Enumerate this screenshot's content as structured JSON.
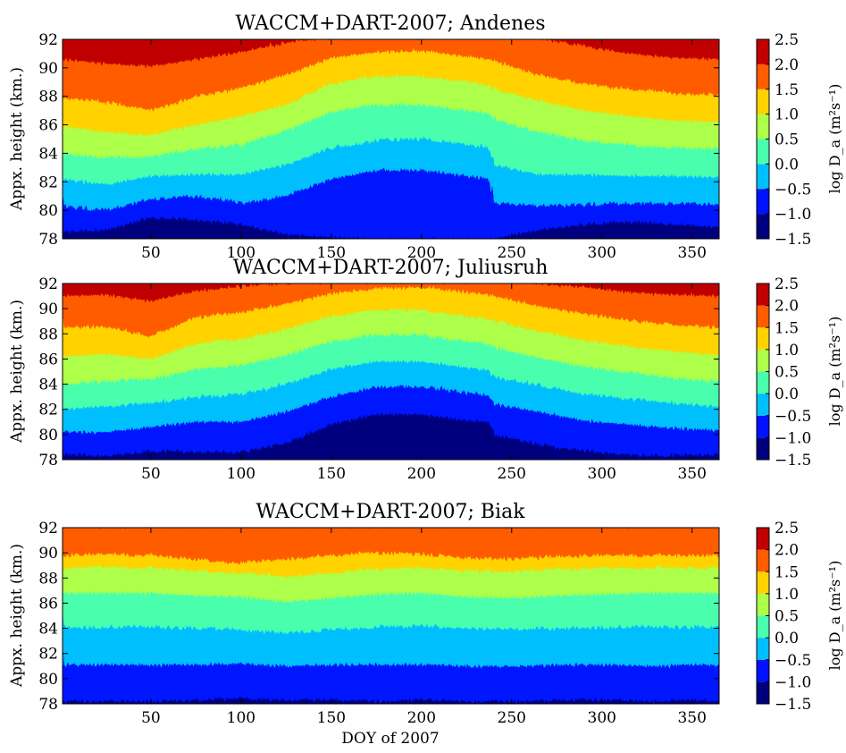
{
  "chart_data": [
    {
      "type": "area",
      "title": "WACCM+DART-2007; Andenes",
      "ylabel": "Appx. height (km.)",
      "xlabel": "",
      "xlim": [
        1,
        365
      ],
      "ylim": [
        78,
        92
      ],
      "xticks": [
        50,
        100,
        150,
        200,
        250,
        300,
        350
      ],
      "yticks": [
        78,
        80,
        82,
        84,
        86,
        88,
        90,
        92
      ],
      "colorbar": {
        "label": "log D_a (m²s⁻¹)",
        "levels": [
          -1.5,
          -1.0,
          -0.5,
          0.0,
          0.5,
          1.0,
          1.5,
          2.0,
          2.5
        ],
        "tick_labels": [
          "2.5",
          "2.0",
          "1.5",
          "1.0",
          "0.5",
          "0.0",
          "−0.5",
          "−1.0",
          "−1.5"
        ]
      },
      "contour_doy": [
        1,
        25,
        50,
        75,
        100,
        125,
        150,
        175,
        200,
        225,
        238,
        240,
        265,
        290,
        315,
        340,
        365
      ],
      "contours": [
        {
          "level": -1.0,
          "heights": [
            78.5,
            78.6,
            79.5,
            79.3,
            79.0,
            78.3,
            78.1,
            78.0,
            78.0,
            78.0,
            78.0,
            78.0,
            78.6,
            79.0,
            79.2,
            79.0,
            78.8
          ]
        },
        {
          "level": -0.5,
          "heights": [
            80.3,
            80.0,
            80.8,
            81.0,
            80.5,
            81.0,
            82.2,
            82.8,
            82.8,
            82.4,
            82.2,
            80.5,
            80.3,
            80.4,
            80.5,
            80.5,
            80.4
          ]
        },
        {
          "level": 0.0,
          "heights": [
            82.2,
            81.8,
            82.4,
            82.5,
            82.5,
            83.2,
            84.4,
            84.9,
            85.0,
            84.6,
            84.4,
            83.2,
            82.5,
            82.5,
            82.4,
            82.4,
            82.3
          ]
        },
        {
          "level": 0.5,
          "heights": [
            84.0,
            83.7,
            83.8,
            84.3,
            84.6,
            85.6,
            86.9,
            87.4,
            87.4,
            87.0,
            86.8,
            86.4,
            85.5,
            84.9,
            84.6,
            84.4,
            84.3
          ]
        },
        {
          "level": 1.0,
          "heights": [
            85.9,
            85.5,
            85.3,
            86.0,
            86.6,
            87.4,
            88.9,
            89.4,
            89.4,
            89.0,
            88.8,
            88.5,
            87.7,
            87.0,
            86.6,
            86.3,
            86.2
          ]
        },
        {
          "level": 1.5,
          "heights": [
            87.9,
            87.6,
            87.0,
            88.0,
            88.6,
            89.5,
            90.7,
            91.1,
            91.2,
            90.8,
            90.6,
            90.5,
            89.5,
            88.9,
            88.5,
            88.2,
            88.1
          ]
        },
        {
          "level": 2.0,
          "heights": [
            90.6,
            90.3,
            90.1,
            90.6,
            91.1,
            91.8,
            92.1,
            92.1,
            92.1,
            92.1,
            92.1,
            92.1,
            92.1,
            91.5,
            91.0,
            90.7,
            90.6
          ]
        }
      ]
    },
    {
      "type": "area",
      "title": "WACCM+DART-2007; Juliusruh",
      "ylabel": "Appx. height (km.)",
      "xlabel": "",
      "xlim": [
        1,
        365
      ],
      "ylim": [
        78,
        92
      ],
      "xticks": [
        50,
        100,
        150,
        200,
        250,
        300,
        350
      ],
      "yticks": [
        78,
        80,
        82,
        84,
        86,
        88,
        90,
        92
      ],
      "colorbar": {
        "label": "log D_a (m²s⁻¹)",
        "levels": [
          -1.5,
          -1.0,
          -0.5,
          0.0,
          0.5,
          1.0,
          1.5,
          2.0,
          2.5
        ],
        "tick_labels": [
          "2.5",
          "2.0",
          "1.5",
          "1.0",
          "0.5",
          "0.0",
          "−0.5",
          "−1.0",
          "−1.5"
        ]
      },
      "contour_doy": [
        1,
        25,
        50,
        75,
        100,
        125,
        150,
        175,
        200,
        225,
        238,
        240,
        265,
        290,
        315,
        340,
        365
      ],
      "contours": [
        {
          "level": -1.5,
          "heights": [
            78.0,
            78.0,
            78.0,
            78.0,
            78.0,
            78.0,
            78.3,
            78.8,
            78.8,
            78.4,
            78.2,
            78.0,
            78.0,
            78.0,
            78.0,
            78.0,
            78.0
          ]
        },
        {
          "level": -1.0,
          "heights": [
            78.4,
            78.3,
            78.7,
            78.6,
            78.6,
            79.3,
            80.8,
            81.6,
            81.6,
            81.1,
            81.0,
            80.0,
            79.2,
            78.7,
            78.4,
            78.3,
            78.4
          ]
        },
        {
          "level": -0.5,
          "heights": [
            80.2,
            80.2,
            80.6,
            81.0,
            81.0,
            81.8,
            83.0,
            83.8,
            83.8,
            83.3,
            83.1,
            82.4,
            81.8,
            81.1,
            80.8,
            80.5,
            80.3
          ]
        },
        {
          "level": 0.0,
          "heights": [
            82.0,
            82.2,
            82.5,
            83.0,
            83.2,
            84.0,
            85.2,
            85.8,
            85.8,
            85.3,
            85.1,
            84.6,
            83.9,
            83.2,
            82.8,
            82.5,
            82.2
          ]
        },
        {
          "level": 0.5,
          "heights": [
            84.0,
            84.2,
            84.4,
            85.2,
            85.5,
            86.3,
            87.4,
            87.9,
            87.9,
            87.4,
            87.2,
            86.9,
            86.1,
            85.4,
            84.9,
            84.5,
            84.2
          ]
        },
        {
          "level": 1.0,
          "heights": [
            86.2,
            86.4,
            86.0,
            87.2,
            87.6,
            88.4,
            89.4,
            89.9,
            89.9,
            89.4,
            89.2,
            89.0,
            88.2,
            87.5,
            87.0,
            86.6,
            86.3
          ]
        },
        {
          "level": 1.5,
          "heights": [
            88.5,
            88.6,
            87.8,
            89.3,
            89.7,
            90.4,
            91.2,
            91.6,
            91.7,
            91.3,
            91.1,
            91.0,
            90.2,
            89.6,
            89.1,
            88.7,
            88.5
          ]
        },
        {
          "level": 2.0,
          "heights": [
            91.0,
            91.1,
            90.6,
            91.4,
            91.8,
            92.0,
            92.1,
            92.1,
            92.1,
            92.1,
            92.1,
            92.1,
            92.0,
            91.7,
            91.3,
            91.1,
            91.0
          ]
        }
      ]
    },
    {
      "type": "area",
      "title": "WACCM+DART-2007; Biak",
      "ylabel": "Appx. height (km.)",
      "xlabel": "DOY of 2007",
      "xlim": [
        1,
        365
      ],
      "ylim": [
        78,
        92
      ],
      "xticks": [
        50,
        100,
        150,
        200,
        250,
        300,
        350
      ],
      "yticks": [
        78,
        80,
        82,
        84,
        86,
        88,
        90,
        92
      ],
      "colorbar": {
        "label": "log D_a (m²s⁻¹)",
        "levels": [
          -1.5,
          -1.0,
          -0.5,
          0.0,
          0.5,
          1.0,
          1.5,
          2.0,
          2.5
        ],
        "tick_labels": [
          "2.5",
          "2.0",
          "1.5",
          "1.0",
          "0.5",
          "0.0",
          "−0.5",
          "−1.0",
          "−1.5"
        ]
      },
      "contour_doy": [
        1,
        25,
        50,
        75,
        100,
        125,
        150,
        175,
        200,
        225,
        250,
        275,
        300,
        325,
        350,
        365
      ],
      "contours": [
        {
          "level": -1.0,
          "heights": [
            78.2,
            78.2,
            78.2,
            78.3,
            78.4,
            78.3,
            78.3,
            78.2,
            78.3,
            78.2,
            78.2,
            78.3,
            78.3,
            78.2,
            78.3,
            78.2
          ]
        },
        {
          "level": -0.5,
          "heights": [
            81.1,
            81.1,
            81.1,
            81.1,
            81.2,
            81.0,
            81.1,
            81.1,
            81.1,
            81.0,
            81.0,
            81.1,
            81.1,
            81.0,
            81.1,
            81.1
          ]
        },
        {
          "level": 0.0,
          "heights": [
            84.1,
            84.1,
            84.1,
            84.0,
            83.9,
            83.6,
            83.9,
            84.1,
            84.2,
            84.0,
            83.9,
            84.0,
            84.1,
            84.1,
            84.1,
            84.1
          ]
        },
        {
          "level": 0.5,
          "heights": [
            86.8,
            86.8,
            86.8,
            86.6,
            86.5,
            86.1,
            86.4,
            86.7,
            86.8,
            86.5,
            86.4,
            86.6,
            86.7,
            86.8,
            86.8,
            86.8
          ]
        },
        {
          "level": 1.0,
          "heights": [
            88.8,
            88.9,
            88.8,
            88.6,
            88.4,
            88.1,
            88.4,
            88.7,
            88.8,
            88.6,
            88.5,
            88.7,
            88.8,
            88.8,
            88.8,
            88.8
          ]
        },
        {
          "level": 1.5,
          "heights": [
            89.8,
            89.9,
            89.8,
            89.5,
            89.2,
            89.5,
            89.8,
            90.0,
            89.9,
            89.6,
            89.5,
            89.7,
            89.8,
            89.8,
            89.8,
            89.8
          ]
        },
        {
          "level": 2.0,
          "heights": [
            92.1,
            92.1,
            92.1,
            92.1,
            92.1,
            92.1,
            92.1,
            92.1,
            92.1,
            92.1,
            92.1,
            92.1,
            92.1,
            92.1,
            92.1,
            92.1
          ]
        }
      ]
    }
  ],
  "colors": {
    "band_colors": [
      "#00007f",
      "#0012ff",
      "#00bfff",
      "#49ffad",
      "#adff49",
      "#ffd200",
      "#ff5c00",
      "#c00000"
    ]
  }
}
